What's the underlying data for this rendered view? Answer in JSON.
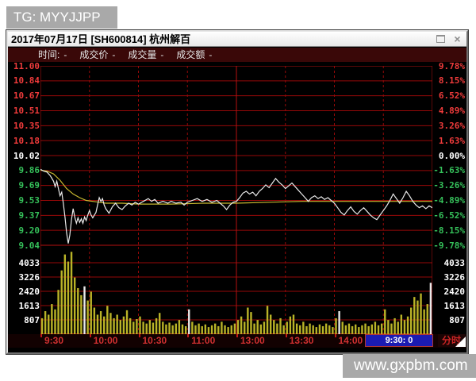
{
  "banner_top": {
    "text": "TG: MYYJJPP"
  },
  "banner_bottom": {
    "text": "www.gxpbm.com"
  },
  "window": {
    "title": "2017年07月17日 [SH600814] 杭州解百",
    "icons": {
      "maximize": "restore-box",
      "close": "×"
    }
  },
  "toolbar": {
    "fields": [
      {
        "label": "时间:",
        "value": "-"
      },
      {
        "label": "成交价",
        "value": "-"
      },
      {
        "label": "成交量",
        "value": "-"
      },
      {
        "label": "成交额",
        "value": "-"
      }
    ]
  },
  "status_bar": {
    "time_box": "9:30:  0",
    "mode_label": "分时"
  },
  "chart_data": {
    "type": "line",
    "subtype": "intraday-price-with-volume",
    "prev_close": 10.02,
    "price_axis_labels": [
      "11.00",
      "10.84",
      "10.67",
      "10.51",
      "10.35",
      "10.18",
      "10.02",
      "9.86",
      "9.69",
      "9.53",
      "9.37",
      "9.20",
      "9.04"
    ],
    "pct_axis_labels": [
      "9.78%",
      "8.15%",
      "6.52%",
      "4.89%",
      "3.26%",
      "1.63%",
      "0.00%",
      "-1.63%",
      "-3.26%",
      "-4.89%",
      "-6.52%",
      "-8.15%",
      "-9.78%"
    ],
    "volume_axis_labels": [
      "4033",
      "3226",
      "2420",
      "1613",
      "807"
    ],
    "time_labels": [
      "9:30",
      "10:00",
      "10:30",
      "11:00",
      "13:00",
      "13:30",
      "14:00"
    ],
    "price_range": [
      9.04,
      11.0
    ],
    "minutes_total": 240,
    "volume_scale_top": 4840,
    "volume_grid_step": 807,
    "series": [
      {
        "name": "price",
        "points": [
          [
            0,
            9.87
          ],
          [
            2,
            9.85
          ],
          [
            4,
            9.84
          ],
          [
            6,
            9.8
          ],
          [
            8,
            9.74
          ],
          [
            9,
            9.68
          ],
          [
            10,
            9.74
          ],
          [
            11,
            9.66
          ],
          [
            12,
            9.58
          ],
          [
            13,
            9.62
          ],
          [
            14,
            9.5
          ],
          [
            15,
            9.35
          ],
          [
            16,
            9.18
          ],
          [
            17,
            9.06
          ],
          [
            18,
            9.15
          ],
          [
            19,
            9.32
          ],
          [
            20,
            9.44
          ],
          [
            21,
            9.35
          ],
          [
            22,
            9.28
          ],
          [
            23,
            9.34
          ],
          [
            24,
            9.29
          ],
          [
            25,
            9.33
          ],
          [
            26,
            9.28
          ],
          [
            27,
            9.35
          ],
          [
            28,
            9.31
          ],
          [
            29,
            9.37
          ],
          [
            30,
            9.42
          ],
          [
            31,
            9.37
          ],
          [
            32,
            9.34
          ],
          [
            34,
            9.4
          ],
          [
            35,
            9.48
          ],
          [
            36,
            9.56
          ],
          [
            37,
            9.52
          ],
          [
            38,
            9.55
          ],
          [
            39,
            9.48
          ],
          [
            40,
            9.44
          ],
          [
            42,
            9.39
          ],
          [
            44,
            9.46
          ],
          [
            46,
            9.5
          ],
          [
            48,
            9.45
          ],
          [
            50,
            9.43
          ],
          [
            52,
            9.47
          ],
          [
            54,
            9.5
          ],
          [
            56,
            9.48
          ],
          [
            58,
            9.51
          ],
          [
            60,
            9.49
          ],
          [
            63,
            9.52
          ],
          [
            66,
            9.55
          ],
          [
            68,
            9.52
          ],
          [
            70,
            9.54
          ],
          [
            72,
            9.5
          ],
          [
            75,
            9.52
          ],
          [
            78,
            9.5
          ],
          [
            80,
            9.52
          ],
          [
            83,
            9.5
          ],
          [
            86,
            9.51
          ],
          [
            88,
            9.48
          ],
          [
            90,
            9.51
          ],
          [
            93,
            9.53
          ],
          [
            96,
            9.55
          ],
          [
            99,
            9.52
          ],
          [
            102,
            9.54
          ],
          [
            105,
            9.51
          ],
          [
            108,
            9.53
          ],
          [
            110,
            9.5
          ],
          [
            112,
            9.47
          ],
          [
            114,
            9.43
          ],
          [
            116,
            9.48
          ],
          [
            118,
            9.51
          ],
          [
            120,
            9.52
          ],
          [
            122,
            9.56
          ],
          [
            124,
            9.61
          ],
          [
            126,
            9.63
          ],
          [
            128,
            9.6
          ],
          [
            130,
            9.62
          ],
          [
            132,
            9.58
          ],
          [
            134,
            9.63
          ],
          [
            136,
            9.66
          ],
          [
            138,
            9.7
          ],
          [
            140,
            9.67
          ],
          [
            142,
            9.72
          ],
          [
            144,
            9.77
          ],
          [
            146,
            9.73
          ],
          [
            148,
            9.7
          ],
          [
            150,
            9.66
          ],
          [
            152,
            9.69
          ],
          [
            154,
            9.72
          ],
          [
            156,
            9.68
          ],
          [
            158,
            9.64
          ],
          [
            160,
            9.6
          ],
          [
            162,
            9.56
          ],
          [
            164,
            9.52
          ],
          [
            166,
            9.56
          ],
          [
            168,
            9.58
          ],
          [
            170,
            9.55
          ],
          [
            172,
            9.57
          ],
          [
            174,
            9.54
          ],
          [
            176,
            9.56
          ],
          [
            178,
            9.53
          ],
          [
            180,
            9.5
          ],
          [
            182,
            9.45
          ],
          [
            184,
            9.4
          ],
          [
            186,
            9.37
          ],
          [
            188,
            9.42
          ],
          [
            190,
            9.46
          ],
          [
            192,
            9.41
          ],
          [
            194,
            9.38
          ],
          [
            196,
            9.42
          ],
          [
            198,
            9.45
          ],
          [
            200,
            9.41
          ],
          [
            202,
            9.37
          ],
          [
            204,
            9.34
          ],
          [
            206,
            9.32
          ],
          [
            208,
            9.37
          ],
          [
            210,
            9.42
          ],
          [
            212,
            9.47
          ],
          [
            214,
            9.53
          ],
          [
            216,
            9.6
          ],
          [
            218,
            9.55
          ],
          [
            220,
            9.5
          ],
          [
            222,
            9.56
          ],
          [
            224,
            9.63
          ],
          [
            226,
            9.58
          ],
          [
            228,
            9.52
          ],
          [
            230,
            9.48
          ],
          [
            232,
            9.45
          ],
          [
            234,
            9.47
          ],
          [
            236,
            9.44
          ],
          [
            238,
            9.47
          ],
          [
            240,
            9.45
          ]
        ]
      },
      {
        "name": "average_price",
        "points": [
          [
            0,
            9.86
          ],
          [
            4,
            9.85
          ],
          [
            8,
            9.82
          ],
          [
            12,
            9.75
          ],
          [
            16,
            9.66
          ],
          [
            20,
            9.6
          ],
          [
            24,
            9.56
          ],
          [
            28,
            9.53
          ],
          [
            32,
            9.52
          ],
          [
            36,
            9.51
          ],
          [
            40,
            9.5
          ],
          [
            50,
            9.5
          ],
          [
            60,
            9.49
          ],
          [
            80,
            9.49
          ],
          [
            100,
            9.5
          ],
          [
            120,
            9.5
          ],
          [
            140,
            9.51
          ],
          [
            160,
            9.52
          ],
          [
            180,
            9.52
          ],
          [
            200,
            9.52
          ],
          [
            220,
            9.52
          ],
          [
            240,
            9.52
          ]
        ]
      }
    ],
    "volume_bars": [
      900,
      1300,
      1100,
      1700,
      1400,
      2500,
      3600,
      4500,
      4100,
      4650,
      3200,
      2600,
      2200,
      2700,
      1900,
      2400,
      1500,
      1100,
      1300,
      1000,
      1600,
      1200,
      900,
      1100,
      800,
      1000,
      1350,
      900,
      700,
      850,
      1000,
      700,
      600,
      800,
      650,
      900,
      1200,
      700,
      550,
      650,
      500,
      600,
      800,
      550,
      450,
      1400,
      700,
      500,
      600,
      450,
      550,
      400,
      500,
      600,
      450,
      700,
      500,
      400,
      500,
      600,
      800,
      1000,
      700,
      1500,
      1250,
      600,
      800,
      550,
      700,
      1600,
      1100,
      800,
      600,
      900,
      500,
      700,
      1000,
      1100,
      600,
      500,
      700,
      450,
      600,
      500,
      400,
      550,
      450,
      600,
      500,
      400,
      900,
      1300,
      700,
      500,
      600,
      450,
      550,
      400,
      500,
      600,
      450,
      550,
      700,
      500,
      600,
      1400,
      800,
      600,
      900,
      700,
      1100,
      800,
      1000,
      1500,
      2100,
      1900,
      2300,
      1400,
      1700,
      2900
    ],
    "white_bar_indexes": [
      13,
      45,
      91,
      119
    ],
    "colors": {
      "up": "#f03b3b",
      "down": "#35c05a",
      "flat": "#ffffff",
      "grid": "#960808",
      "grid_bright": "#b51111",
      "price_line": "#e9e9e9",
      "avg_line": "#c9b930",
      "volume_bar": "#b9b327",
      "volume_bar_highlight": "#e8e8e8",
      "time_label": "#d03030",
      "time_box_bg": "#1b1bb2",
      "toolbar_bg": "#3a0808",
      "banner_bg": "#a9a9a9"
    },
    "layout": {
      "grid": true,
      "legend": false,
      "mid_session_break": "11:30/13:00"
    }
  }
}
